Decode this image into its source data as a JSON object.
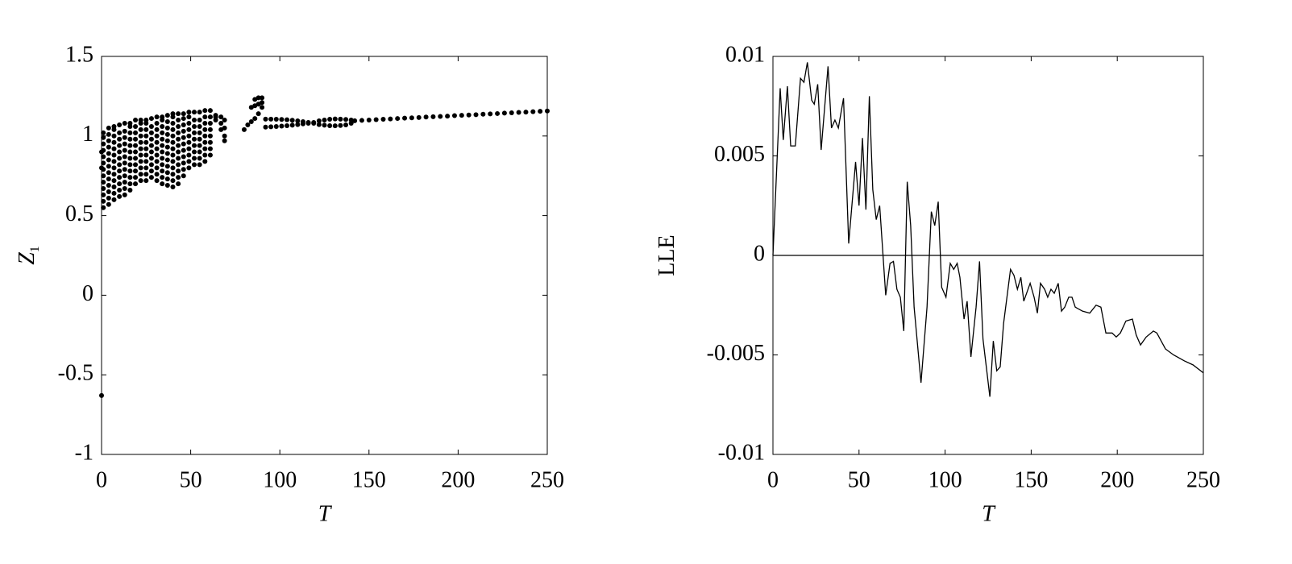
{
  "chart_data": [
    {
      "type": "scatter",
      "xlabel": "T",
      "ylabel": "Z",
      "ylabel_subscript": "1",
      "color": "#000000",
      "xlim": [
        0,
        250
      ],
      "xticks": [
        0,
        50,
        100,
        150,
        200,
        250
      ],
      "ylim": [
        -1,
        1.5
      ],
      "yticks": [
        -1,
        -0.5,
        0,
        0.5,
        1,
        1.5
      ],
      "points": [
        [
          0,
          -0.63
        ],
        [
          0,
          0.8
        ],
        [
          0,
          0.9
        ],
        [
          1,
          0.55
        ],
        [
          1,
          0.59
        ],
        [
          1,
          0.63
        ],
        [
          1,
          0.67
        ],
        [
          1,
          0.71
        ],
        [
          1,
          0.75
        ],
        [
          1,
          0.79
        ],
        [
          1,
          0.83
        ],
        [
          1,
          0.87
        ],
        [
          1,
          0.91
        ],
        [
          1,
          0.95
        ],
        [
          1,
          0.99
        ],
        [
          1,
          1.02
        ],
        [
          4,
          0.57
        ],
        [
          4,
          0.61
        ],
        [
          4,
          0.65
        ],
        [
          4,
          0.69
        ],
        [
          4,
          0.73
        ],
        [
          4,
          0.77
        ],
        [
          4,
          0.81
        ],
        [
          4,
          0.85
        ],
        [
          4,
          0.89
        ],
        [
          4,
          0.93
        ],
        [
          4,
          0.97
        ],
        [
          4,
          1.01
        ],
        [
          4,
          1.05
        ],
        [
          7,
          0.6
        ],
        [
          7,
          0.64
        ],
        [
          7,
          0.68
        ],
        [
          7,
          0.72
        ],
        [
          7,
          0.76
        ],
        [
          7,
          0.8
        ],
        [
          7,
          0.84
        ],
        [
          7,
          0.88
        ],
        [
          7,
          0.92
        ],
        [
          7,
          0.96
        ],
        [
          7,
          1.0
        ],
        [
          7,
          1.04
        ],
        [
          7,
          1.06
        ],
        [
          10,
          0.62
        ],
        [
          10,
          0.66
        ],
        [
          10,
          0.7
        ],
        [
          10,
          0.74
        ],
        [
          10,
          0.78
        ],
        [
          10,
          0.82
        ],
        [
          10,
          0.86
        ],
        [
          10,
          0.9
        ],
        [
          10,
          0.94
        ],
        [
          10,
          0.98
        ],
        [
          10,
          1.02
        ],
        [
          10,
          1.07
        ],
        [
          13,
          0.63
        ],
        [
          13,
          0.67
        ],
        [
          13,
          0.71
        ],
        [
          13,
          0.75
        ],
        [
          13,
          0.79
        ],
        [
          13,
          0.83
        ],
        [
          13,
          0.87
        ],
        [
          13,
          0.91
        ],
        [
          13,
          0.95
        ],
        [
          13,
          0.99
        ],
        [
          13,
          1.03
        ],
        [
          13,
          1.08
        ],
        [
          16,
          0.66
        ],
        [
          16,
          0.7
        ],
        [
          16,
          0.74
        ],
        [
          16,
          0.78
        ],
        [
          16,
          0.82
        ],
        [
          16,
          0.86
        ],
        [
          16,
          0.9
        ],
        [
          16,
          0.94
        ],
        [
          16,
          0.98
        ],
        [
          16,
          1.02
        ],
        [
          16,
          1.06
        ],
        [
          16,
          1.08
        ],
        [
          19,
          0.7
        ],
        [
          19,
          0.74
        ],
        [
          19,
          0.78
        ],
        [
          19,
          0.82
        ],
        [
          19,
          0.86
        ],
        [
          19,
          0.9
        ],
        [
          19,
          0.94
        ],
        [
          19,
          0.98
        ],
        [
          19,
          1.02
        ],
        [
          19,
          1.06
        ],
        [
          19,
          1.1
        ],
        [
          22,
          0.72
        ],
        [
          22,
          0.76
        ],
        [
          22,
          0.8
        ],
        [
          22,
          0.84
        ],
        [
          22,
          0.88
        ],
        [
          22,
          0.92
        ],
        [
          22,
          0.96
        ],
        [
          22,
          1.0
        ],
        [
          22,
          1.04
        ],
        [
          22,
          1.08
        ],
        [
          22,
          1.1
        ],
        [
          25,
          0.72
        ],
        [
          25,
          0.76
        ],
        [
          25,
          0.8
        ],
        [
          25,
          0.84
        ],
        [
          25,
          0.88
        ],
        [
          25,
          0.92
        ],
        [
          25,
          0.96
        ],
        [
          25,
          1.0
        ],
        [
          25,
          1.04
        ],
        [
          25,
          1.08
        ],
        [
          25,
          1.1
        ],
        [
          28,
          0.74
        ],
        [
          28,
          0.78
        ],
        [
          28,
          0.82
        ],
        [
          28,
          0.86
        ],
        [
          28,
          0.9
        ],
        [
          28,
          0.94
        ],
        [
          28,
          0.98
        ],
        [
          28,
          1.02
        ],
        [
          28,
          1.06
        ],
        [
          28,
          1.11
        ],
        [
          31,
          0.72
        ],
        [
          31,
          0.76
        ],
        [
          31,
          0.8
        ],
        [
          31,
          0.84
        ],
        [
          31,
          0.88
        ],
        [
          31,
          0.92
        ],
        [
          31,
          0.96
        ],
        [
          31,
          1.0
        ],
        [
          31,
          1.04
        ],
        [
          31,
          1.08
        ],
        [
          31,
          1.12
        ],
        [
          34,
          0.7
        ],
        [
          34,
          0.74
        ],
        [
          34,
          0.78
        ],
        [
          34,
          0.82
        ],
        [
          34,
          0.86
        ],
        [
          34,
          0.9
        ],
        [
          34,
          0.94
        ],
        [
          34,
          0.98
        ],
        [
          34,
          1.02
        ],
        [
          34,
          1.06
        ],
        [
          34,
          1.1
        ],
        [
          34,
          1.12
        ],
        [
          37,
          0.69
        ],
        [
          37,
          0.73
        ],
        [
          37,
          0.77
        ],
        [
          37,
          0.81
        ],
        [
          37,
          0.85
        ],
        [
          37,
          0.89
        ],
        [
          37,
          0.93
        ],
        [
          37,
          0.97
        ],
        [
          37,
          1.01
        ],
        [
          37,
          1.05
        ],
        [
          37,
          1.09
        ],
        [
          37,
          1.13
        ],
        [
          40,
          0.68
        ],
        [
          40,
          0.72
        ],
        [
          40,
          0.76
        ],
        [
          40,
          0.8
        ],
        [
          40,
          0.84
        ],
        [
          40,
          0.88
        ],
        [
          40,
          0.92
        ],
        [
          40,
          0.96
        ],
        [
          40,
          1.0
        ],
        [
          40,
          1.04
        ],
        [
          40,
          1.08
        ],
        [
          40,
          1.12
        ],
        [
          40,
          1.14
        ],
        [
          43,
          0.7
        ],
        [
          43,
          0.74
        ],
        [
          43,
          0.78
        ],
        [
          43,
          0.82
        ],
        [
          43,
          0.86
        ],
        [
          43,
          0.9
        ],
        [
          43,
          0.94
        ],
        [
          43,
          0.98
        ],
        [
          43,
          1.02
        ],
        [
          43,
          1.06
        ],
        [
          43,
          1.1
        ],
        [
          43,
          1.14
        ],
        [
          46,
          0.75
        ],
        [
          46,
          0.79
        ],
        [
          46,
          0.83
        ],
        [
          46,
          0.87
        ],
        [
          46,
          0.91
        ],
        [
          46,
          0.95
        ],
        [
          46,
          0.99
        ],
        [
          46,
          1.03
        ],
        [
          46,
          1.07
        ],
        [
          46,
          1.11
        ],
        [
          46,
          1.14
        ],
        [
          49,
          0.8
        ],
        [
          49,
          0.84
        ],
        [
          49,
          0.88
        ],
        [
          49,
          0.92
        ],
        [
          49,
          0.96
        ],
        [
          49,
          1.0
        ],
        [
          49,
          1.04
        ],
        [
          49,
          1.08
        ],
        [
          49,
          1.12
        ],
        [
          49,
          1.15
        ],
        [
          52,
          0.82
        ],
        [
          52,
          0.86
        ],
        [
          52,
          0.9
        ],
        [
          52,
          0.94
        ],
        [
          52,
          0.98
        ],
        [
          52,
          1.02
        ],
        [
          52,
          1.06
        ],
        [
          52,
          1.1
        ],
        [
          52,
          1.15
        ],
        [
          55,
          0.82
        ],
        [
          55,
          0.86
        ],
        [
          55,
          0.9
        ],
        [
          55,
          0.94
        ],
        [
          55,
          0.98
        ],
        [
          55,
          1.02
        ],
        [
          55,
          1.06
        ],
        [
          55,
          1.1
        ],
        [
          55,
          1.15
        ],
        [
          58,
          0.84
        ],
        [
          58,
          0.88
        ],
        [
          58,
          0.92
        ],
        [
          58,
          0.96
        ],
        [
          58,
          1.0
        ],
        [
          58,
          1.04
        ],
        [
          58,
          1.08
        ],
        [
          58,
          1.12
        ],
        [
          58,
          1.16
        ],
        [
          61,
          0.88
        ],
        [
          61,
          0.92
        ],
        [
          61,
          0.96
        ],
        [
          61,
          1.0
        ],
        [
          61,
          1.04
        ],
        [
          61,
          1.08
        ],
        [
          61,
          1.12
        ],
        [
          61,
          1.16
        ],
        [
          64,
          1.1
        ],
        [
          64,
          1.12
        ],
        [
          64,
          1.13
        ],
        [
          67,
          1.04
        ],
        [
          67,
          1.08
        ],
        [
          67,
          1.12
        ],
        [
          69,
          0.97
        ],
        [
          69,
          1.0
        ],
        [
          69,
          1.05
        ],
        [
          69,
          1.1
        ],
        [
          80,
          1.04
        ],
        [
          82,
          1.07
        ],
        [
          84,
          1.09
        ],
        [
          84,
          1.18
        ],
        [
          86,
          1.11
        ],
        [
          86,
          1.19
        ],
        [
          86,
          1.23
        ],
        [
          88,
          1.14
        ],
        [
          88,
          1.2
        ],
        [
          88,
          1.24
        ],
        [
          90,
          1.18
        ],
        [
          90,
          1.21
        ],
        [
          90,
          1.24
        ],
        [
          92,
          1.106
        ],
        [
          92,
          1.056
        ],
        [
          95,
          1.106
        ],
        [
          95,
          1.058
        ],
        [
          98,
          1.105
        ],
        [
          98,
          1.06
        ],
        [
          101,
          1.104
        ],
        [
          101,
          1.062
        ],
        [
          104,
          1.102
        ],
        [
          104,
          1.065
        ],
        [
          107,
          1.099
        ],
        [
          107,
          1.068
        ],
        [
          110,
          1.095
        ],
        [
          110,
          1.072
        ],
        [
          113,
          1.09
        ],
        [
          113,
          1.076
        ],
        [
          116,
          1.085
        ],
        [
          116,
          1.08
        ],
        [
          119,
          1.085
        ],
        [
          119,
          1.08
        ],
        [
          122,
          1.095
        ],
        [
          122,
          1.072
        ],
        [
          125,
          1.1
        ],
        [
          125,
          1.068
        ],
        [
          128,
          1.105
        ],
        [
          128,
          1.065
        ],
        [
          131,
          1.107
        ],
        [
          131,
          1.064
        ],
        [
          134,
          1.106
        ],
        [
          134,
          1.066
        ],
        [
          137,
          1.104
        ],
        [
          137,
          1.07
        ],
        [
          140,
          1.1
        ],
        [
          140,
          1.08
        ],
        [
          142,
          1.096
        ],
        [
          146,
          1.098
        ],
        [
          150,
          1.1
        ],
        [
          154,
          1.103
        ],
        [
          158,
          1.105
        ],
        [
          162,
          1.107
        ],
        [
          166,
          1.11
        ],
        [
          170,
          1.112
        ],
        [
          174,
          1.114
        ],
        [
          178,
          1.116
        ],
        [
          182,
          1.119
        ],
        [
          186,
          1.121
        ],
        [
          190,
          1.123
        ],
        [
          194,
          1.125
        ],
        [
          198,
          1.128
        ],
        [
          202,
          1.13
        ],
        [
          206,
          1.132
        ],
        [
          210,
          1.134
        ],
        [
          214,
          1.137
        ],
        [
          218,
          1.139
        ],
        [
          222,
          1.141
        ],
        [
          226,
          1.144
        ],
        [
          230,
          1.146
        ],
        [
          234,
          1.148
        ],
        [
          238,
          1.15
        ],
        [
          242,
          1.153
        ],
        [
          246,
          1.155
        ],
        [
          250,
          1.157
        ]
      ]
    },
    {
      "type": "line",
      "xlabel": "T",
      "ylabel": "LLE",
      "color": "#000000",
      "hline": 0,
      "xlim": [
        0,
        250
      ],
      "xticks": [
        0,
        50,
        100,
        150,
        200,
        250
      ],
      "ylim": [
        -0.01,
        0.01
      ],
      "yticks": [
        -0.01,
        -0.005,
        0,
        0.005,
        0.01
      ],
      "x": [
        0,
        4.2,
        6,
        8.4,
        10.3,
        13,
        16,
        18,
        20,
        22.5,
        24,
        26,
        28,
        32,
        34,
        36,
        38,
        41,
        44,
        48,
        50,
        52,
        54,
        56,
        58,
        60,
        62,
        65.5,
        68,
        70,
        72,
        74,
        76,
        78,
        80,
        82,
        86,
        89.5,
        92,
        94,
        96,
        98,
        100.5,
        103,
        105,
        107,
        108.6,
        111,
        112.8,
        115,
        118,
        120,
        122,
        126,
        128,
        130,
        132,
        134,
        138,
        140,
        142,
        144,
        145.7,
        149.4,
        151.7,
        153.6,
        155.4,
        157.8,
        159.6,
        161.5,
        163.4,
        165.7,
        167.6,
        169.5,
        171.8,
        173.7,
        175.6,
        179.8,
        184,
        187.7,
        190.5,
        193.4,
        197,
        199.4,
        201.8,
        205,
        208.8,
        211,
        213.5,
        216.8,
        221,
        223,
        228,
        232.7,
        239,
        244,
        250
      ],
      "values": [
        0,
        0.0084,
        0.0058,
        0.0085,
        0.0055,
        0.0055,
        0.0089,
        0.0087,
        0.0097,
        0.0078,
        0.0076,
        0.0086,
        0.0053,
        0.0095,
        0.0064,
        0.0068,
        0.0064,
        0.0079,
        0.0006,
        0.0047,
        0.0025,
        0.0059,
        0.0023,
        0.008,
        0.0033,
        0.0018,
        0.0025,
        -0.002,
        -0.0004,
        -0.0003,
        -0.0017,
        -0.0021,
        -0.0038,
        0.0037,
        0.0015,
        -0.0026,
        -0.0064,
        -0.0026,
        0.0022,
        0.0015,
        0.0027,
        -0.0016,
        -0.0021,
        -0.0004,
        -0.0007,
        -0.0004,
        -0.0011,
        -0.0032,
        -0.0023,
        -0.0051,
        -0.0026,
        -0.0003,
        -0.0042,
        -0.0071,
        -0.0043,
        -0.0058,
        -0.0056,
        -0.0034,
        -0.0007,
        -0.001,
        -0.0017,
        -0.0011,
        -0.0023,
        -0.0014,
        -0.0021,
        -0.0029,
        -0.0014,
        -0.0017,
        -0.0021,
        -0.0017,
        -0.0019,
        -0.0014,
        -0.0028,
        -0.0026,
        -0.0021,
        -0.0021,
        -0.0026,
        -0.0028,
        -0.0029,
        -0.0025,
        -0.0026,
        -0.0039,
        -0.0039,
        -0.0041,
        -0.0039,
        -0.0033,
        -0.0032,
        -0.004,
        -0.0045,
        -0.0041,
        -0.0038,
        -0.0039,
        -0.0047,
        -0.005,
        -0.0053,
        -0.0055,
        -0.0059
      ]
    }
  ]
}
